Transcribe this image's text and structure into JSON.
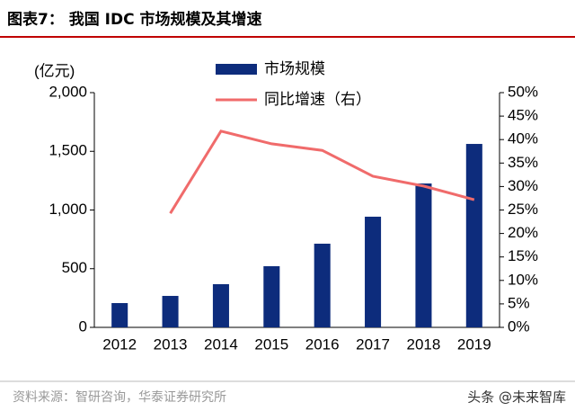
{
  "chart_data": {
    "type": "bar",
    "title": "图表7：  我国 IDC 市场规模及其增速",
    "y_label": "(亿元)",
    "categories": [
      "2012",
      "2013",
      "2014",
      "2015",
      "2016",
      "2017",
      "2018",
      "2019"
    ],
    "series": [
      {
        "name": "市场规模",
        "type": "bar",
        "color": "#0d2c7c",
        "values": [
          207,
          268,
          368,
          521,
          713,
          943,
          1226,
          1563
        ]
      },
      {
        "name": "同比增速（右）",
        "type": "line",
        "axis": "y2",
        "color": "#f06b6b",
        "values": [
          null,
          24.3,
          41.8,
          39.1,
          37.7,
          32.2,
          30.1,
          27.2
        ]
      }
    ],
    "ylim": [
      0,
      2000
    ],
    "yticks": [
      0,
      500,
      {
        "value": 1000,
        "label": "1,000"
      },
      {
        "value": 1500,
        "label": "1,500"
      },
      {
        "value": 2000,
        "label": "2,000"
      }
    ],
    "y2lim": [
      0,
      50
    ],
    "y2ticks": [
      {
        "value": 0,
        "label": "0%"
      },
      {
        "value": 5,
        "label": "5%"
      },
      {
        "value": 10,
        "label": "10%"
      },
      {
        "value": 15,
        "label": "15%"
      },
      {
        "value": 20,
        "label": "20%"
      },
      {
        "value": 25,
        "label": "25%"
      },
      {
        "value": 30,
        "label": "30%"
      },
      {
        "value": 35,
        "label": "35%"
      },
      {
        "value": 40,
        "label": "40%"
      },
      {
        "value": 45,
        "label": "45%"
      },
      {
        "value": 50,
        "label": "50%"
      }
    ],
    "source": "资料来源：智研咨询，华泰证券研究所",
    "watermark": "头条 @未来智库"
  }
}
